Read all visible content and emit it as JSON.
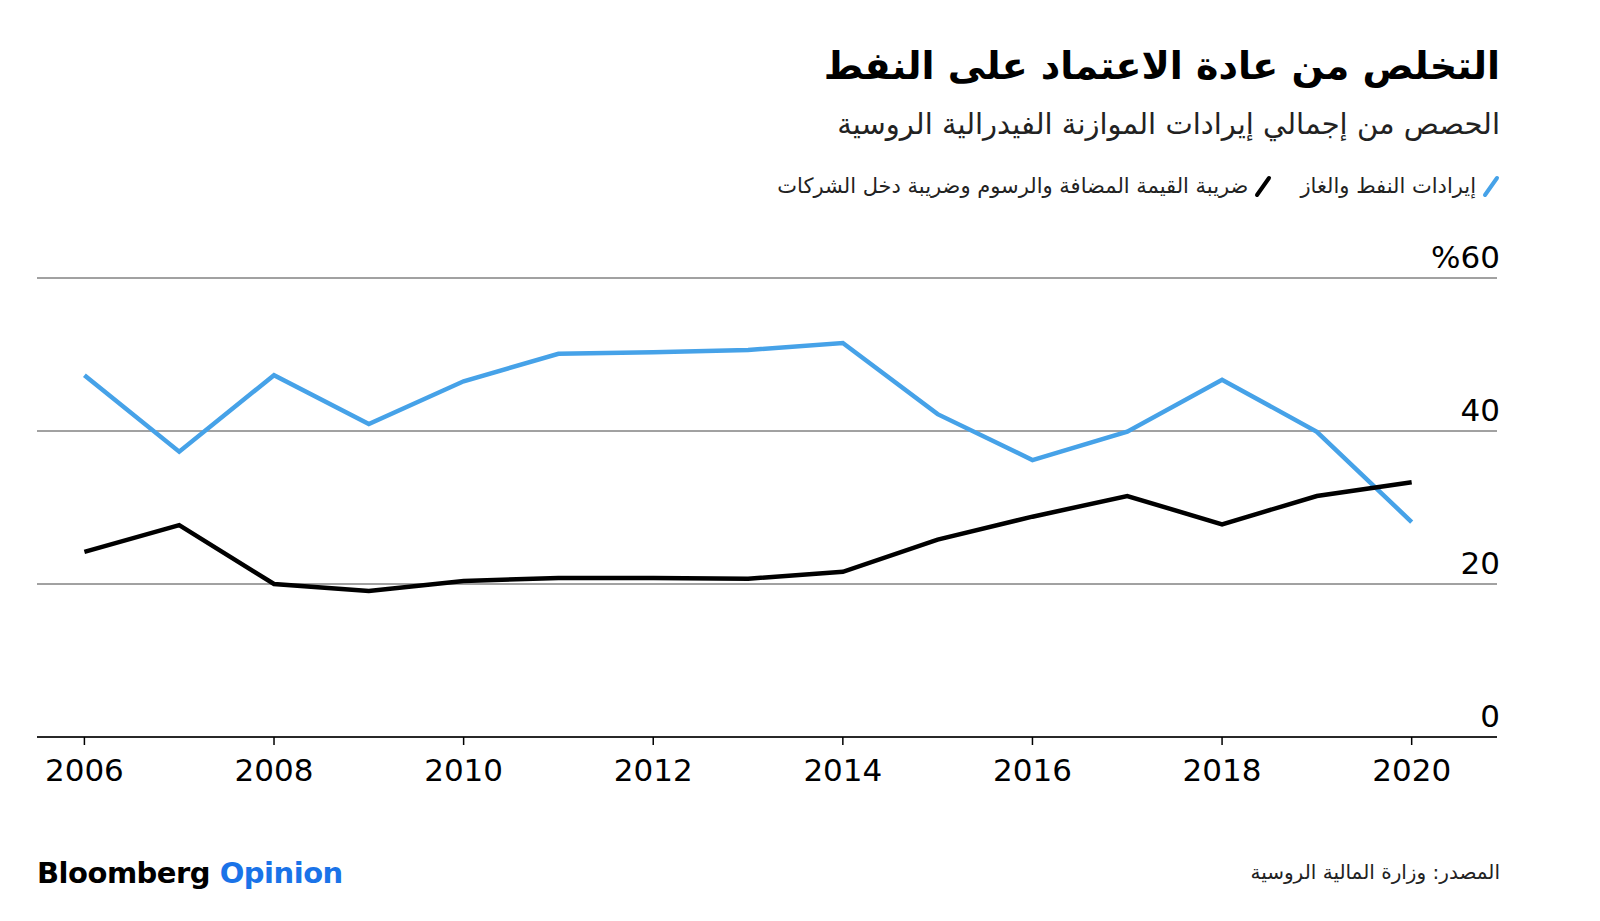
{
  "chart_data": {
    "type": "line",
    "title": "التخلص من عادة الاعتماد على النفط",
    "subtitle": "الحصص من إجمالي إيرادات الموازنة الفيدرالية الروسية",
    "source": "المصدر: وزارة المالية الروسية",
    "brand": "Bloomberg Opinion",
    "x": [
      2006,
      2007,
      2008,
      2009,
      2010,
      2011,
      2012,
      2013,
      2014,
      2015,
      2016,
      2017,
      2018,
      2019,
      2020
    ],
    "series": [
      {
        "name": "إيرادات النفط والغاز",
        "color": "#46a2e8",
        "values": [
          47.3,
          37.3,
          47.3,
          40.9,
          46.5,
          50.1,
          50.3,
          50.6,
          51.5,
          42.2,
          36.2,
          39.9,
          46.7,
          39.9,
          28.1
        ]
      },
      {
        "name": "ضريبة القيمة المضافة والرسوم وضريبة دخل الشركات",
        "color": "#000000",
        "values": [
          24.2,
          27.7,
          20.0,
          19.1,
          20.4,
          20.8,
          20.8,
          20.7,
          21.6,
          25.8,
          28.8,
          31.5,
          27.8,
          31.5,
          33.3
        ]
      }
    ],
    "xlim": [
      2005.5,
      2020.9
    ],
    "xticks": [
      2006,
      2008,
      2010,
      2012,
      2014,
      2016,
      2018,
      2020
    ],
    "ylim": [
      0,
      60
    ],
    "yticks": [
      0,
      20,
      40,
      {
        "value": 60,
        "label": "%60"
      }
    ],
    "grid": true,
    "legend": "top-right"
  }
}
